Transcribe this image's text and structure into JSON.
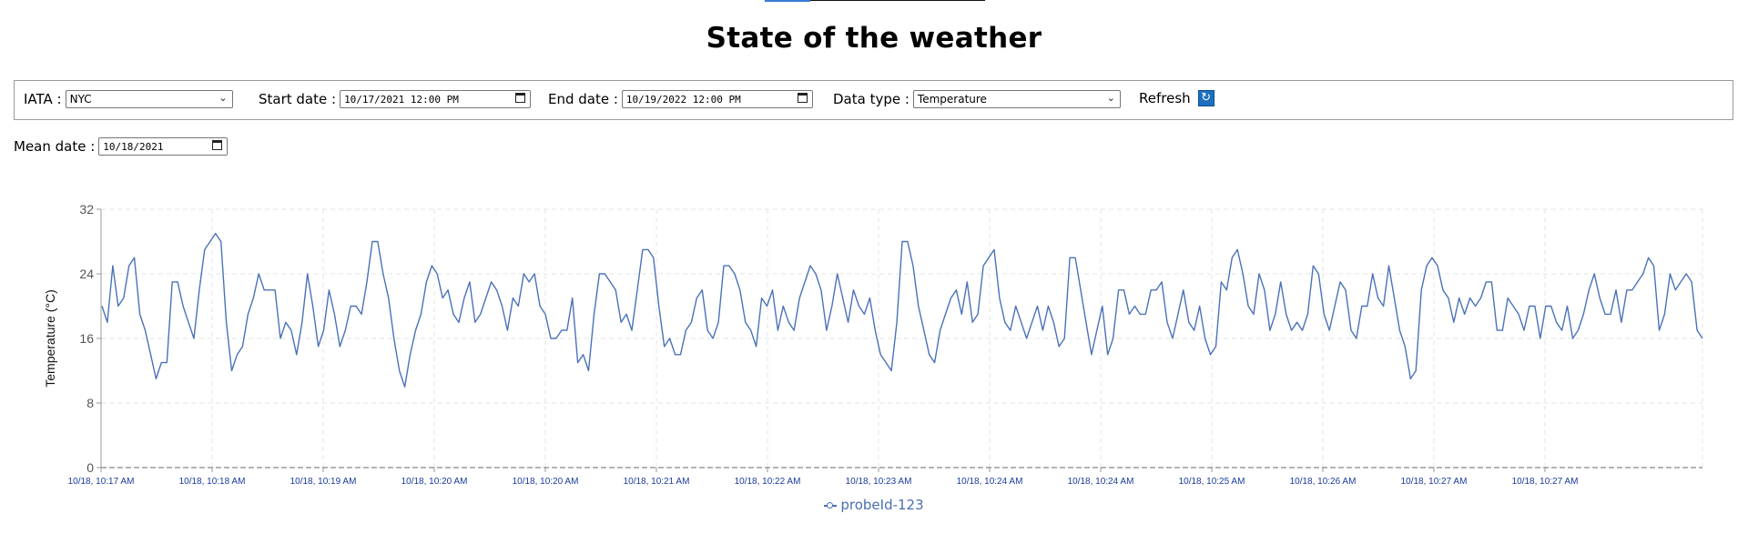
{
  "page": {
    "title": "State of the weather"
  },
  "controls": {
    "iata": {
      "label": "IATA :",
      "value": "NYC"
    },
    "start": {
      "label": "Start date :",
      "value": "10/17/2021 12:00 PM"
    },
    "end": {
      "label": "End date :",
      "value": "10/19/2022 12:00 PM"
    },
    "datatype": {
      "label": "Data type :",
      "value": "Temperature"
    },
    "refresh": {
      "label": "Refresh"
    },
    "mean": {
      "label": "Mean date :",
      "value": "10/18/2021"
    }
  },
  "colors": {
    "series": "#4a72b8",
    "grid": "#e6e6e6",
    "tick_x": "#1a3aa0",
    "tick_y": "#555555",
    "refresh_button": "#1e6fbf"
  },
  "icons": {
    "refresh": "refresh-icon",
    "dropdown": "chevron-down-icon",
    "calendar": "calendar-icon"
  },
  "chart_data": {
    "type": "line",
    "title": "",
    "xlabel": "",
    "ylabel": "Temperature (°C)",
    "ylim": [
      0,
      32
    ],
    "yticks": [
      0,
      8,
      16,
      24,
      32
    ],
    "grid": true,
    "legend_position": "bottom-center",
    "x_tick_labels": [
      "10/18, 10:17 AM",
      "10/18, 10:18 AM",
      "10/18, 10:19 AM",
      "10/18, 10:20 AM",
      "10/18, 10:20 AM",
      "10/18, 10:21 AM",
      "10/18, 10:22 AM",
      "10/18, 10:23 AM",
      "10/18, 10:24 AM",
      "10/18, 10:24 AM",
      "10/18, 10:25 AM",
      "10/18, 10:26 AM",
      "10/18, 10:27 AM",
      "10/18, 10:27 AM"
    ],
    "series": [
      {
        "name": "probeId-123",
        "values": [
          20,
          18,
          25,
          20,
          21,
          25,
          26,
          19,
          17,
          14,
          11,
          13,
          13,
          23,
          23,
          20,
          18,
          16,
          22,
          27,
          28,
          29,
          28,
          18,
          12,
          14,
          15,
          19,
          21,
          24,
          22,
          22,
          22,
          16,
          18,
          17,
          14,
          18,
          24,
          20,
          15,
          17,
          22,
          19,
          15,
          17,
          20,
          20,
          19,
          23,
          28,
          28,
          24,
          21,
          16,
          12,
          10,
          14,
          17,
          19,
          23,
          25,
          24,
          21,
          22,
          19,
          18,
          21,
          23,
          18,
          19,
          21,
          23,
          22,
          20,
          17,
          21,
          20,
          24,
          23,
          24,
          20,
          19,
          16,
          16,
          17,
          17,
          21,
          13,
          14,
          12,
          19,
          24,
          24,
          23,
          22,
          18,
          19,
          17,
          22,
          27,
          27,
          26,
          20,
          15,
          16,
          14,
          14,
          17,
          18,
          21,
          22,
          17,
          16,
          18,
          25,
          25,
          24,
          22,
          18,
          17,
          15,
          21,
          20,
          22,
          17,
          20,
          18,
          17,
          21,
          23,
          25,
          24,
          22,
          17,
          20,
          24,
          21,
          18,
          22,
          20,
          19,
          21,
          17,
          14,
          13,
          12,
          18,
          28,
          28,
          25,
          20,
          17,
          14,
          13,
          17,
          19,
          21,
          22,
          19,
          23,
          18,
          19,
          25,
          26,
          27,
          21,
          18,
          17,
          20,
          18,
          16,
          18,
          20,
          17,
          20,
          18,
          15,
          16,
          26,
          26,
          22,
          18,
          14,
          17,
          20,
          14,
          16,
          22,
          22,
          19,
          20,
          19,
          19,
          22,
          22,
          23,
          18,
          16,
          19,
          22,
          18,
          17,
          20,
          16,
          14,
          15,
          23,
          22,
          26,
          27,
          24,
          20,
          19,
          24,
          22,
          17,
          19,
          23,
          19,
          17,
          18,
          17,
          19,
          25,
          24,
          19,
          17,
          20,
          23,
          22,
          17,
          16,
          20,
          20,
          24,
          21,
          20,
          25,
          21,
          17,
          15,
          11,
          12,
          22,
          25,
          26,
          25,
          22,
          21,
          18,
          21,
          19,
          21,
          20,
          21,
          23,
          23,
          17,
          17,
          21,
          20,
          19,
          17,
          20,
          20,
          16,
          20,
          20,
          18,
          17,
          20,
          16,
          17,
          19,
          22,
          24,
          21,
          19,
          19,
          22,
          18,
          22,
          22,
          23,
          24,
          26,
          25,
          17,
          19,
          24,
          22,
          23,
          24,
          23,
          17,
          16
        ]
      }
    ]
  }
}
